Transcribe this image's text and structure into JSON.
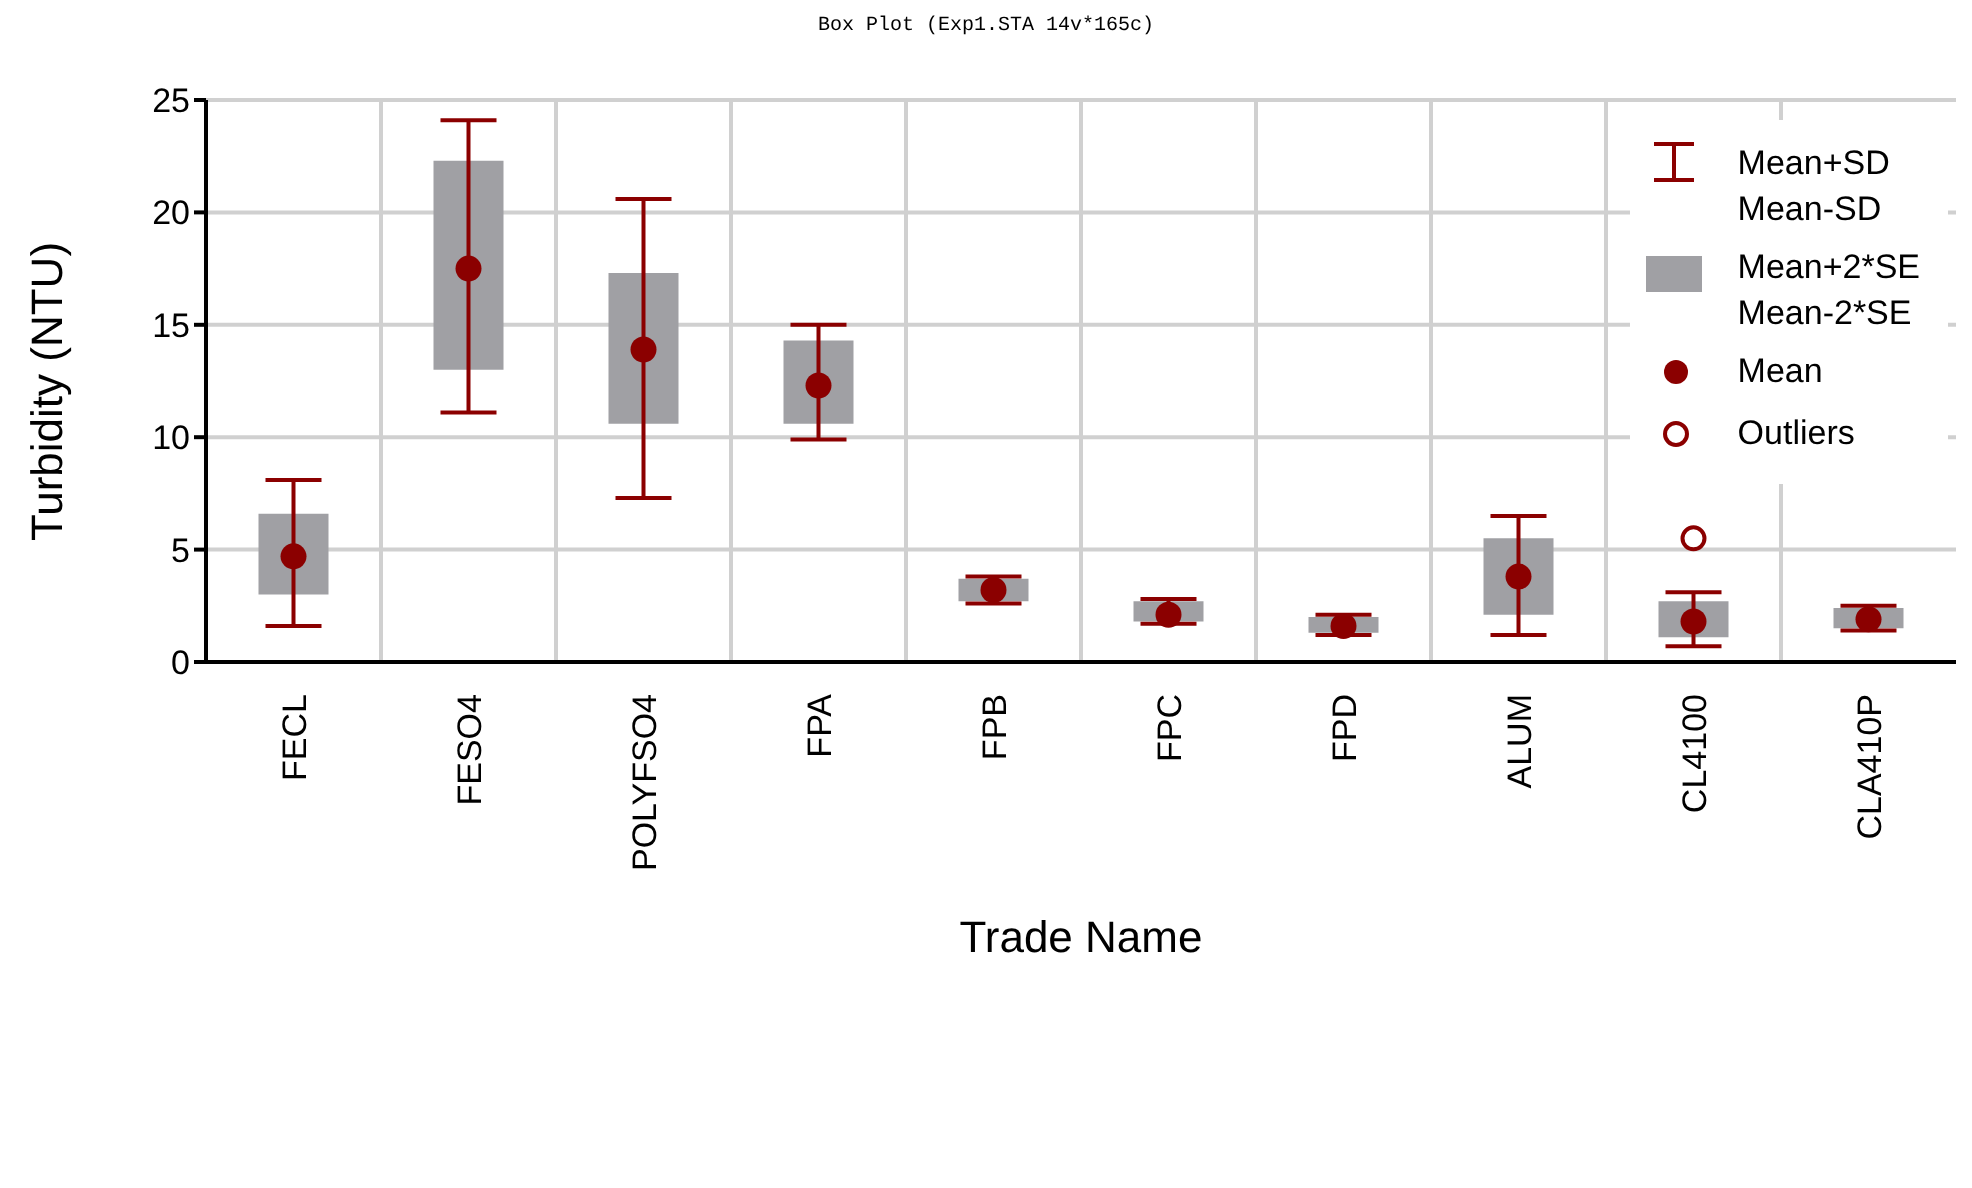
{
  "chart_data": {
    "type": "box",
    "title": "Box Plot (Exp1.STA 14v*165c)",
    "xlabel": "Trade Name",
    "ylabel": "Turbidity (NTU)",
    "categories": [
      "FECL",
      "FESO4",
      "POLYFSO4",
      "FPA",
      "FPB",
      "FPC",
      "FPD",
      "ALUM",
      "CL4100",
      "CLA410P"
    ],
    "color": "#8b0000",
    "series": [
      {
        "color": "#a0a0a4",
        "boxes": [
          {
            "low": 1.6,
            "q1": 3.0,
            "q3": 6.6,
            "high": 8.1,
            "mean": 4.7
          },
          {
            "low": 11.1,
            "q1": 13.0,
            "q3": 22.3,
            "high": 24.1,
            "mean": 17.5
          },
          {
            "low": 7.3,
            "q1": 10.6,
            "q3": 17.3,
            "high": 20.6,
            "mean": 13.9
          },
          {
            "low": 9.9,
            "q1": 10.6,
            "q3": 14.3,
            "high": 15.0,
            "mean": 12.3
          },
          {
            "low": 2.6,
            "q1": 2.7,
            "q3": 3.7,
            "high": 3.8,
            "mean": 3.2
          },
          {
            "low": 1.7,
            "q1": 1.8,
            "q3": 2.7,
            "high": 2.8,
            "mean": 2.1
          },
          {
            "low": 1.2,
            "q1": 1.3,
            "q3": 2.0,
            "high": 2.1,
            "mean": 1.6
          },
          {
            "low": 1.2,
            "q1": 2.1,
            "q3": 5.5,
            "high": 6.5,
            "mean": 3.8
          },
          {
            "low": 0.7,
            "q1": 1.1,
            "q3": 2.7,
            "high": 3.1,
            "mean": 1.8,
            "outliers": [
              5.5
            ]
          },
          {
            "low": 1.4,
            "q1": 1.5,
            "q3": 2.4,
            "high": 2.5,
            "mean": 1.9
          }
        ]
      }
    ],
    "ylim": [
      0,
      25
    ],
    "yticks": [
      0,
      5,
      10,
      15,
      20,
      25
    ],
    "grid": true,
    "annotations": [
      "Mean+SD",
      "Mean-SD",
      "Mean+2*SE",
      "Mean-2*SE",
      "Mean",
      "Outliers"
    ]
  }
}
